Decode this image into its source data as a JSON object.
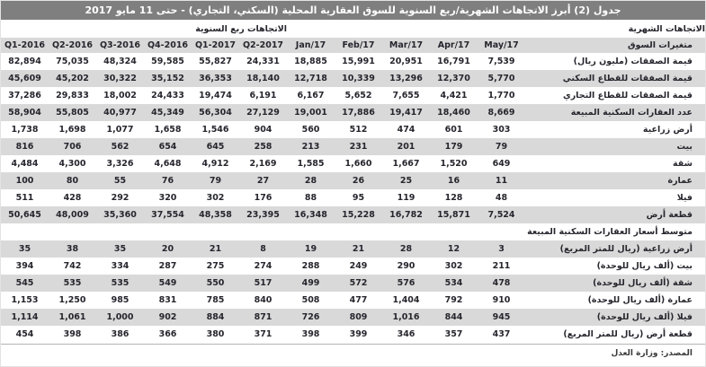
{
  "title": "جدول (2) أبرز الاتجاهات الشهرية/ربع السنوية للسوق العقارية المحلية (السكني، التجاري) - حتى 11 مايو 2017",
  "source": "المصدر: وزارة العدل",
  "colors": {
    "title_bar": "#7f7f7f",
    "stripe_gray": "#d9d9d9",
    "text": "#26262e",
    "title_text": "#ffffff"
  },
  "table": {
    "group_headers": {
      "quarterly": "الاتجاهات ربع السنوية",
      "monthly": "الاتجاهات الشهرية"
    },
    "label_header": "متغيرات السوق",
    "columns": [
      "2016-Q1",
      "2016-Q2",
      "2016-Q3",
      "2016-Q4",
      "2017-Q1",
      "2017-Q2",
      "Jan/17",
      "Feb/17",
      "Mar/17",
      "Apr/17",
      "May/17"
    ],
    "rows": [
      {
        "label": "قيمة الصفقات (مليون ريال)",
        "values": [
          "82,894",
          "75,035",
          "48,324",
          "59,585",
          "55,827",
          "24,331",
          "18,885",
          "15,991",
          "20,951",
          "16,791",
          "7,539"
        ]
      },
      {
        "label": "قيمة الصفقات للقطاع السكني",
        "values": [
          "45,609",
          "45,202",
          "30,322",
          "35,152",
          "36,353",
          "18,140",
          "12,718",
          "10,339",
          "13,296",
          "12,370",
          "5,770"
        ]
      },
      {
        "label": "قيمة الصفقات للقطاع التجاري",
        "values": [
          "37,286",
          "29,833",
          "18,002",
          "24,433",
          "19,474",
          "6,191",
          "6,167",
          "5,652",
          "7,655",
          "4,421",
          "1,770"
        ]
      },
      {
        "label": "عدد العقارات السكنية المبيعة",
        "values": [
          "58,904",
          "55,805",
          "40,977",
          "45,349",
          "56,304",
          "27,129",
          "19,001",
          "17,886",
          "19,417",
          "18,460",
          "8,669"
        ]
      },
      {
        "label": "أرض زراعية",
        "values": [
          "1,738",
          "1,698",
          "1,077",
          "1,658",
          "1,546",
          "904",
          "560",
          "512",
          "474",
          "601",
          "303"
        ]
      },
      {
        "label": "بيت",
        "values": [
          "816",
          "706",
          "562",
          "654",
          "645",
          "258",
          "213",
          "231",
          "201",
          "179",
          "79"
        ]
      },
      {
        "label": "شقة",
        "values": [
          "4,484",
          "4,300",
          "3,326",
          "4,648",
          "4,912",
          "2,169",
          "1,585",
          "1,660",
          "1,667",
          "1,520",
          "649"
        ]
      },
      {
        "label": "عمارة",
        "values": [
          "100",
          "80",
          "55",
          "76",
          "79",
          "27",
          "28",
          "26",
          "25",
          "16",
          "11"
        ]
      },
      {
        "label": "فيلا",
        "values": [
          "511",
          "428",
          "292",
          "320",
          "302",
          "176",
          "88",
          "95",
          "119",
          "128",
          "48"
        ]
      },
      {
        "label": "قطعة أرض",
        "values": [
          "50,645",
          "48,009",
          "35,360",
          "37,554",
          "48,358",
          "23,395",
          "16,348",
          "15,228",
          "16,782",
          "15,871",
          "7,524"
        ]
      },
      {
        "type": "section",
        "label": "متوسط أسعار العقارات السكنية المبيعة"
      },
      {
        "label": "أرض زراعية  (ريال للمتر المربع)",
        "values": [
          "35",
          "38",
          "35",
          "20",
          "21",
          "8",
          "19",
          "21",
          "28",
          "12",
          "3"
        ]
      },
      {
        "label": "بيت  (ألف ريال للوحدة)",
        "values": [
          "394",
          "742",
          "334",
          "287",
          "275",
          "274",
          "288",
          "249",
          "290",
          "302",
          "211"
        ]
      },
      {
        "label": "شقة  (ألف ريال للوحدة)",
        "values": [
          "545",
          "535",
          "535",
          "549",
          "550",
          "517",
          "499",
          "572",
          "576",
          "534",
          "478"
        ]
      },
      {
        "label": "عمارة  (ألف ريال للوحدة)",
        "values": [
          "1,153",
          "1,250",
          "985",
          "831",
          "785",
          "840",
          "508",
          "477",
          "1,404",
          "792",
          "910"
        ]
      },
      {
        "label": "فيلا  (ألف ريال للوحدة)",
        "values": [
          "1,114",
          "1,061",
          "1,000",
          "902",
          "884",
          "871",
          "726",
          "809",
          "1,016",
          "844",
          "945"
        ]
      },
      {
        "label": "قطعة أرض  (ريال للمتر المربع)",
        "values": [
          "454",
          "398",
          "386",
          "366",
          "380",
          "371",
          "398",
          "399",
          "346",
          "357",
          "437"
        ]
      }
    ]
  }
}
